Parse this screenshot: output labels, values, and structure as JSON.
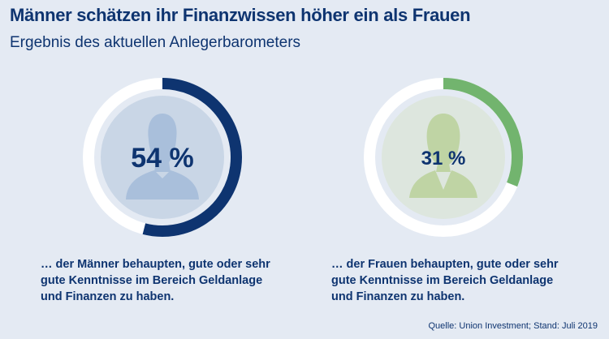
{
  "title": "Männer schätzen ihr Finanzwissen höher ein als Frauen",
  "subtitle": "Ergebnis des aktuellen Anlegerbarometers",
  "source": "Quelle: Union Investment; Stand: Juli 2019",
  "colors": {
    "background": "#e4eaf3",
    "ring_track": "#ffffff",
    "men_arc": "#0e3470",
    "women_arc": "#72b46e",
    "men_inner": "#c9d6e6",
    "women_inner": "#dde6de",
    "men_icon": "#a9bfdb",
    "women_icon": "#bfd4a4",
    "text": "#0e3470"
  },
  "chart_data": [
    {
      "type": "pie",
      "group": "Männer",
      "value": 54,
      "label": "54 %",
      "caption": "… der Männer behaupten, gute oder sehr gute Kenntnisse im Bereich Geldanlage und Finanzen zu haben.",
      "icon": "man-silhouette-icon"
    },
    {
      "type": "pie",
      "group": "Frauen",
      "value": 31,
      "label": "31 %",
      "caption": "… der Frauen behaupten, gute oder sehr gute Kenntnisse im Bereich Geldanlage und Finanzen zu haben.",
      "icon": "woman-silhouette-icon"
    }
  ]
}
